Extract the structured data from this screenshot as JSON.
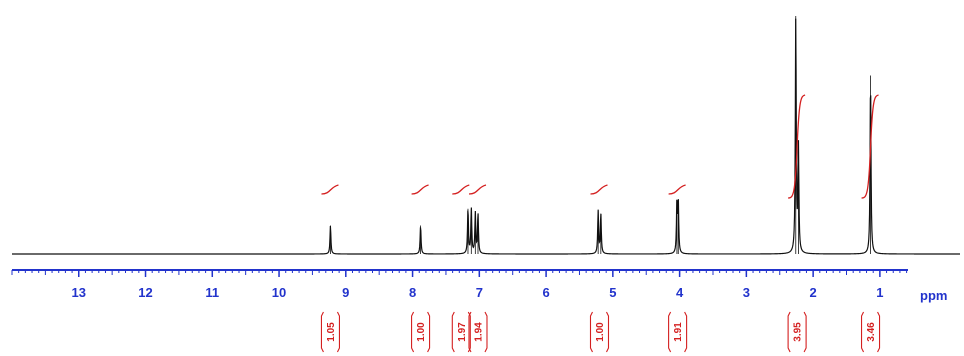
{
  "colors": {
    "axis": "#2233cc",
    "spectrum": "#111111",
    "integral": "#d42020",
    "background": "#ffffff"
  },
  "chart_data": {
    "type": "line",
    "title": "",
    "xlabel": "ppm",
    "ylabel": "",
    "x_reversed": true,
    "xlim": [
      14.0,
      -0.2
    ],
    "x_ticks": [
      13,
      12,
      11,
      10,
      9,
      8,
      7,
      6,
      5,
      4,
      3,
      2,
      1
    ],
    "x_tick_labels": [
      "13",
      "12",
      "11",
      "10",
      "9",
      "8",
      "7",
      "6",
      "5",
      "4",
      "3",
      "2",
      "1"
    ],
    "grid": false,
    "peaks": [
      {
        "shift": 9.23,
        "height": 0.12
      },
      {
        "shift": 7.88,
        "height": 0.12
      },
      {
        "shift": 7.17,
        "height": 0.19
      },
      {
        "shift": 7.12,
        "height": 0.19
      },
      {
        "shift": 7.06,
        "height": 0.17
      },
      {
        "shift": 7.02,
        "height": 0.17
      },
      {
        "shift": 5.22,
        "height": 0.18
      },
      {
        "shift": 5.18,
        "height": 0.17
      },
      {
        "shift": 4.04,
        "height": 0.22
      },
      {
        "shift": 4.02,
        "height": 0.21
      },
      {
        "shift": 2.26,
        "height": 1.0
      },
      {
        "shift": 2.22,
        "height": 0.44
      },
      {
        "shift": 1.14,
        "height": 0.75
      }
    ],
    "integrals": [
      {
        "label": "1.05",
        "center": 9.23
      },
      {
        "label": "1.00",
        "center": 7.88
      },
      {
        "label": "1.97",
        "center": 7.27
      },
      {
        "label": "1.94",
        "center": 7.02
      },
      {
        "label": "1.00",
        "center": 5.2
      },
      {
        "label": "1.91",
        "center": 4.03
      },
      {
        "label": "3.95",
        "center": 2.24
      },
      {
        "label": "3.46",
        "center": 1.14
      }
    ]
  }
}
